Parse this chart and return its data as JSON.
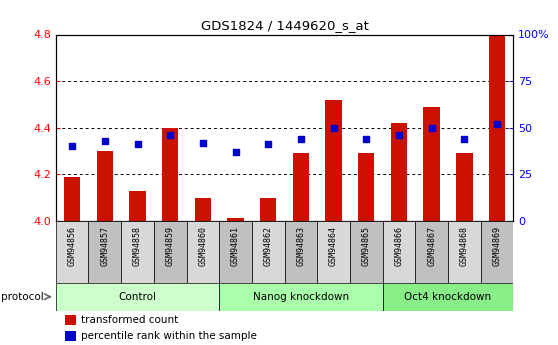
{
  "title": "GDS1824 / 1449620_s_at",
  "samples": [
    "GSM94856",
    "GSM94857",
    "GSM94858",
    "GSM94859",
    "GSM94860",
    "GSM94861",
    "GSM94862",
    "GSM94863",
    "GSM94864",
    "GSM94865",
    "GSM94866",
    "GSM94867",
    "GSM94868",
    "GSM94869"
  ],
  "transformed_count": [
    4.19,
    4.3,
    4.13,
    4.4,
    4.1,
    4.01,
    4.1,
    4.29,
    4.52,
    4.29,
    4.42,
    4.49,
    4.29,
    4.8
  ],
  "percentile_rank": [
    40,
    43,
    41,
    46,
    42,
    37,
    41,
    44,
    50,
    44,
    46,
    50,
    44,
    52
  ],
  "ylim_left": [
    4.0,
    4.8
  ],
  "ylim_right": [
    0,
    100
  ],
  "yticks_left": [
    4.0,
    4.2,
    4.4,
    4.6,
    4.8
  ],
  "yticks_right": [
    0,
    25,
    50,
    75,
    100
  ],
  "ytick_labels_right": [
    "0",
    "25",
    "50",
    "75",
    "100%"
  ],
  "bar_color": "#cc1100",
  "dot_color": "#0000cc",
  "groups": [
    {
      "label": "Control",
      "start": 0,
      "end": 4
    },
    {
      "label": "Nanog knockdown",
      "start": 5,
      "end": 9
    },
    {
      "label": "Oct4 knockdown",
      "start": 10,
      "end": 13
    }
  ],
  "group_colors": [
    "#ccffcc",
    "#aaffaa",
    "#88ee88"
  ],
  "protocol_label": "protocol",
  "legend_items": [
    {
      "color": "#cc1100",
      "label": "transformed count"
    },
    {
      "color": "#0000cc",
      "label": "percentile rank within the sample"
    }
  ],
  "grid_color": "#000000",
  "bar_width": 0.5,
  "plot_bg_color": "#ffffff",
  "tick_cell_color_odd": "#d8d8d8",
  "tick_cell_color_even": "#c0c0c0"
}
